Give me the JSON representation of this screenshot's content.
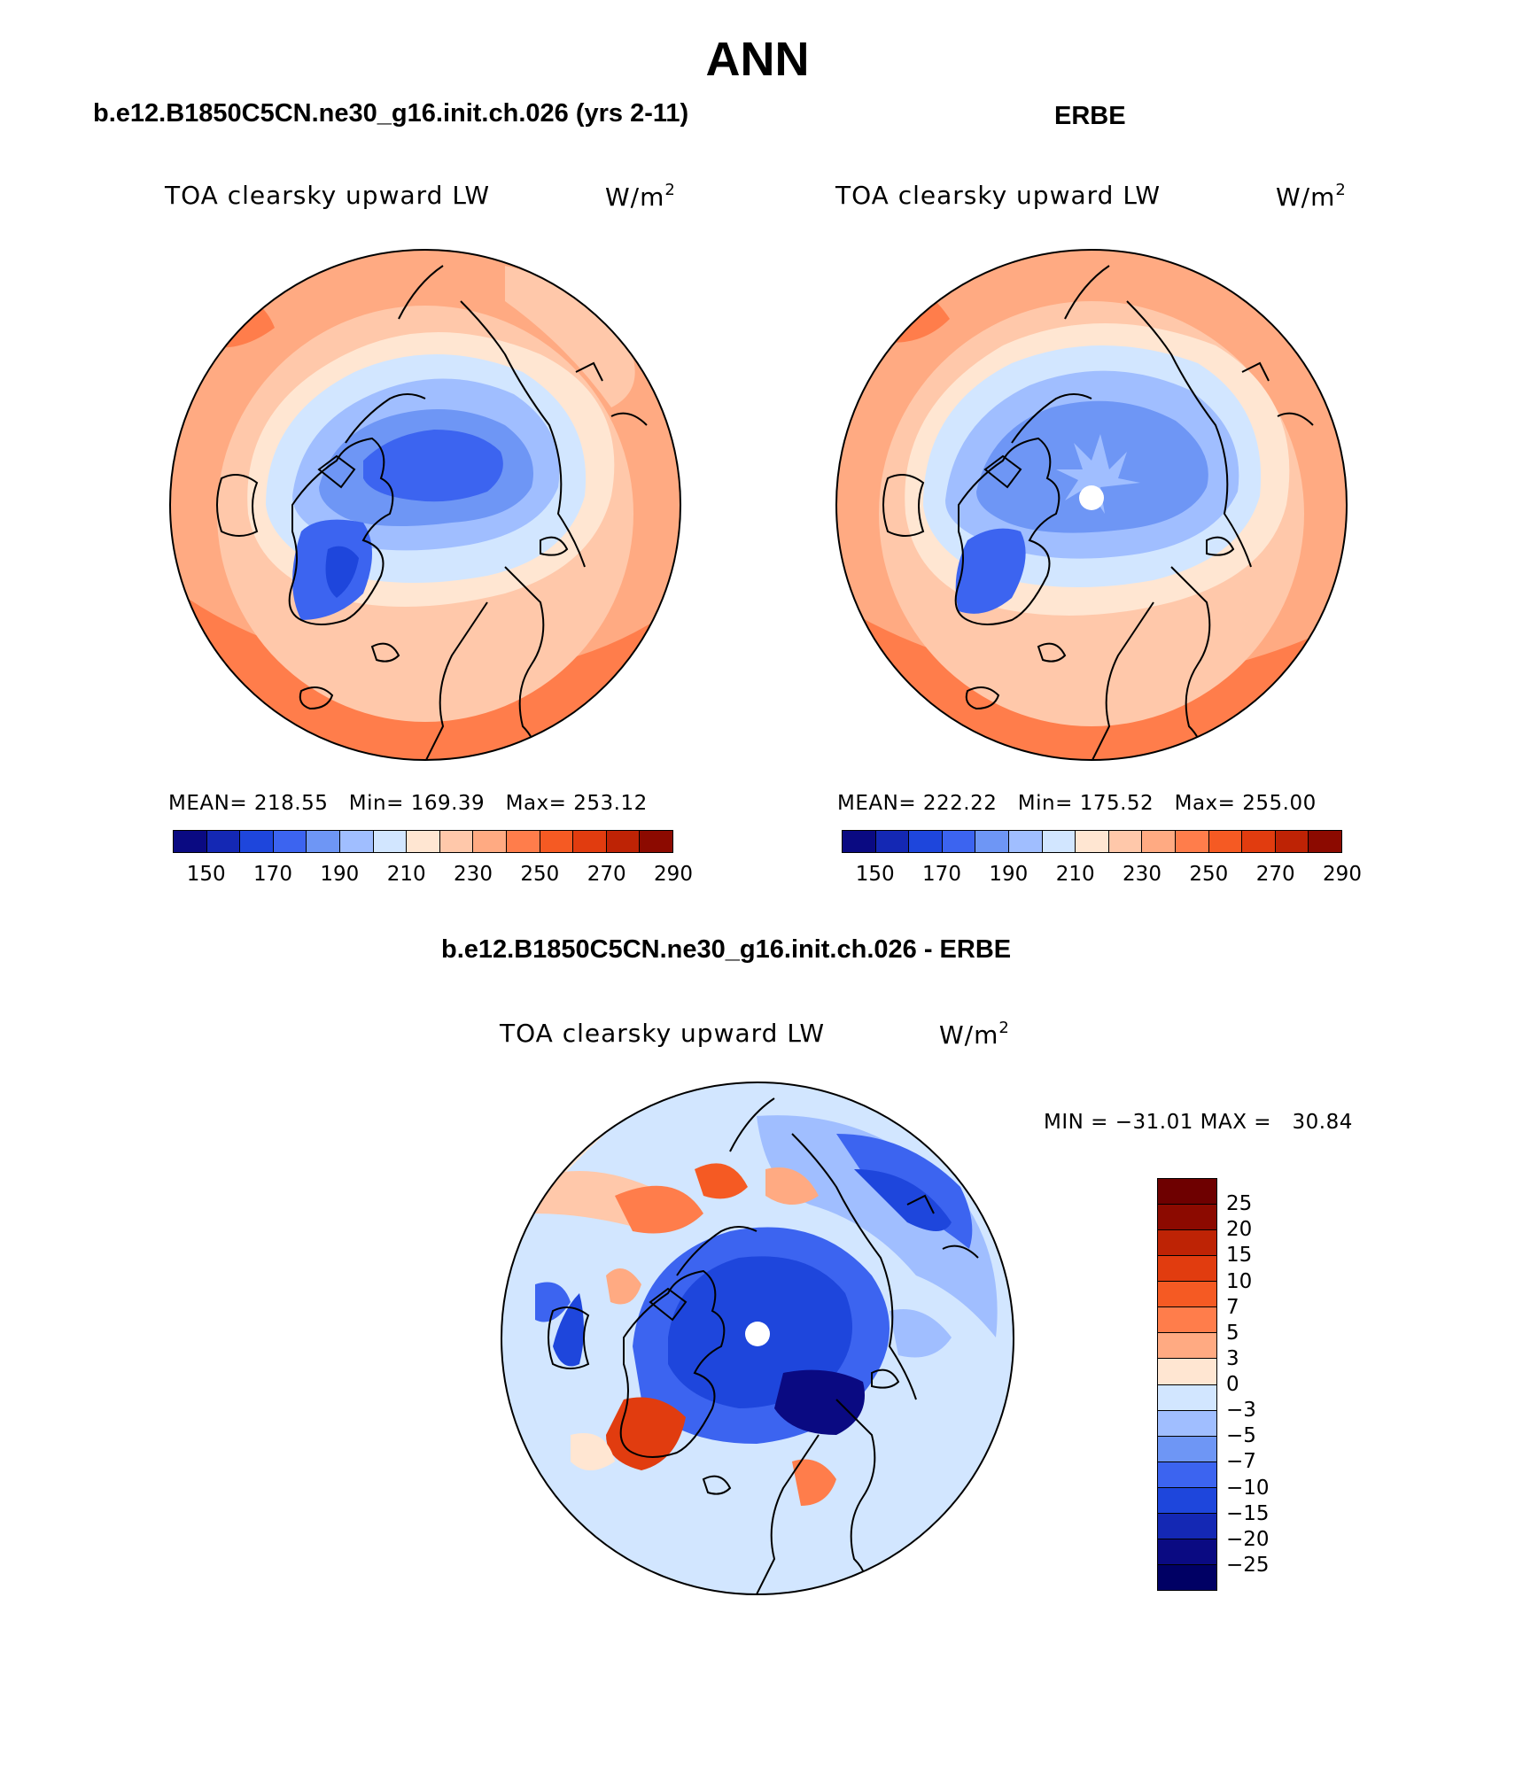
{
  "figure": {
    "title": "ANN",
    "panels": [
      {
        "id": "model",
        "header": "b.e12.B1850C5CN.ne30_g16.init.ch.026 (yrs 2-11)",
        "variable": "TOA clearsky upward LW",
        "units_base": "W/m",
        "units_exp": "2",
        "stats": "MEAN= 218.55   Min= 169.39   Max= 253.12",
        "colorbar_labels": [
          "150",
          "170",
          "190",
          "210",
          "230",
          "250",
          "270",
          "290"
        ]
      },
      {
        "id": "obs",
        "header": "ERBE",
        "variable": "TOA clearsky upward LW",
        "units_base": "W/m",
        "units_exp": "2",
        "stats": "MEAN= 222.22   Min= 175.52   Max= 255.00",
        "colorbar_labels": [
          "150",
          "170",
          "190",
          "210",
          "230",
          "250",
          "270",
          "290"
        ]
      },
      {
        "id": "diff",
        "header": "b.e12.B1850C5CN.ne30_g16.init.ch.026 - ERBE",
        "variable": "TOA clearsky upward LW",
        "units_base": "W/m",
        "units_exp": "2",
        "stats": "MIN = −31.01 MAX =   30.84",
        "colorbar_labels": [
          "25",
          "20",
          "15",
          "10",
          "7",
          "5",
          "3",
          "0",
          "−3",
          "−5",
          "−7",
          "−10",
          "−15",
          "−20",
          "−25"
        ]
      }
    ]
  },
  "colors": {
    "abs_scale": [
      "#0a0a82",
      "#1428b4",
      "#1e46dc",
      "#3c64f0",
      "#6e96f5",
      "#a0beff",
      "#d2e6ff",
      "#ffe6d2",
      "#ffc8aa",
      "#ffaa82",
      "#ff7d4b",
      "#f55a23",
      "#e13c0f",
      "#be2305",
      "#8c0a00"
    ],
    "diff_scale": [
      "#8c0a00",
      "#be2305",
      "#e13c0f",
      "#f55a23",
      "#ff7d4b",
      "#ffaa82",
      "#ffe6d2",
      "#d2e6ff",
      "#a0beff",
      "#6e96f5",
      "#3c64f0",
      "#1e46dc",
      "#1428b4",
      "#0a0a82"
    ]
  },
  "map": {
    "projection": "north polar stereographic",
    "region": "Arctic"
  }
}
